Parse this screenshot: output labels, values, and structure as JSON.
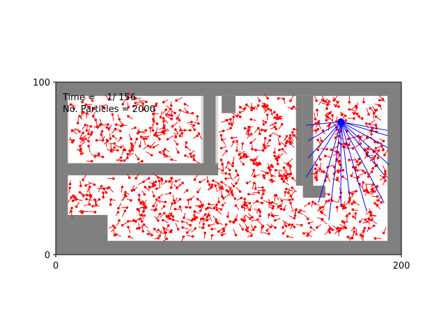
{
  "chart_data": {
    "type": "scatter",
    "title": "",
    "xlabel": "",
    "ylabel": "",
    "xlim": [
      0,
      200
    ],
    "ylim": [
      0,
      100
    ],
    "x_ticks": [
      "0",
      "200"
    ],
    "y_ticks": [
      "0",
      "100"
    ],
    "grid": false,
    "annotations": {
      "time_line": "Time =    1/ 156",
      "particles_line": "No. Particles = 2000"
    },
    "colors": {
      "particles": "#ff0000",
      "robot": "#0000ff",
      "wall": "#808080",
      "free_space": "#ffffff",
      "wall_margin": "#d9d9d9"
    },
    "map": {
      "free_regions": [
        [
          7,
          53,
          84,
          92
        ],
        [
          94,
          149,
          23,
          92
        ],
        [
          7,
          94,
          23,
          46
        ],
        [
          30,
          187,
          8,
          40
        ],
        [
          110,
          187,
          8,
          92
        ],
        [
          149,
          156,
          8,
          33
        ],
        [
          156,
          192,
          8,
          92
        ],
        [
          7,
          30,
          23,
          46
        ],
        [
          7,
          84,
          53,
          92
        ],
        [
          84,
          94,
          23,
          46
        ]
      ],
      "wall_blocks": [
        [
          7,
          84,
          46,
          53
        ],
        [
          96,
          104,
          82,
          92
        ],
        [
          139,
          143,
          40,
          92
        ],
        [
          7,
          30,
          8,
          23
        ],
        [
          0,
          200,
          0,
          8
        ],
        [
          0,
          7,
          0,
          100
        ],
        [
          192,
          200,
          0,
          100
        ],
        [
          0,
          200,
          92,
          100
        ],
        [
          84,
          94,
          46,
          53
        ],
        [
          143,
          149,
          33,
          92
        ],
        [
          149,
          156,
          33,
          40
        ]
      ]
    },
    "robot": {
      "x": 165,
      "y": 77
    },
    "range_beams": [
      [
        145,
        75
      ],
      [
        146,
        66
      ],
      [
        146,
        56
      ],
      [
        145,
        45
      ],
      [
        152,
        30
      ],
      [
        158,
        20
      ],
      [
        165,
        28
      ],
      [
        170,
        34
      ],
      [
        180,
        25
      ],
      [
        190,
        30
      ],
      [
        191,
        45
      ],
      [
        193,
        52
      ],
      [
        192,
        62
      ],
      [
        192,
        69
      ],
      [
        192,
        72
      ]
    ],
    "particles": {
      "count": 2000,
      "drawn_sample": 900,
      "seed": 7
    }
  }
}
